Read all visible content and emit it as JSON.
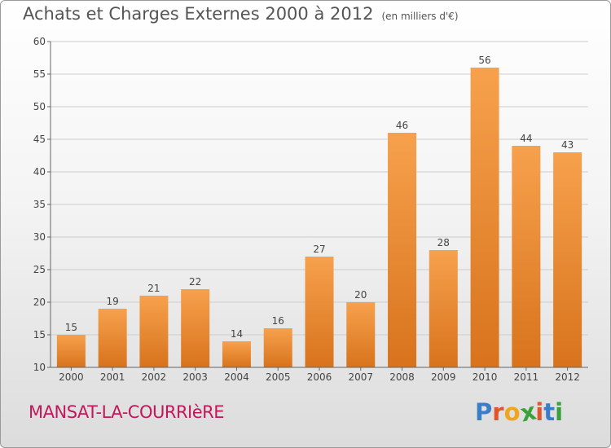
{
  "header": {
    "title": "Achats et Charges Externes 2000 à 2012",
    "subtitle": "(en milliers d'€)"
  },
  "footer": {
    "commune": "MANSAT-LA-COURRIèRE",
    "logo_letters": [
      "P",
      "r",
      "o",
      "x",
      "i",
      "t",
      "i"
    ],
    "logo_colors": [
      "#3a7dc9",
      "#e2552b",
      "#f0a51e",
      "#3aa03a",
      "#e2552b",
      "#3a7dc9",
      "#3aa03a"
    ]
  },
  "colors": {
    "bar_light": "#f7a14d",
    "bar_dark": "#d8731c",
    "grid": "#cccccc",
    "axis": "#666666"
  },
  "chart_data": {
    "type": "bar",
    "title": "Achats et Charges Externes 2000 à 2012",
    "subtitle": "(en milliers d'€)",
    "categories": [
      "2000",
      "2001",
      "2002",
      "2003",
      "2004",
      "2005",
      "2006",
      "2007",
      "2008",
      "2009",
      "2010",
      "2011",
      "2012"
    ],
    "values": [
      15,
      19,
      21,
      22,
      14,
      16,
      27,
      20,
      46,
      28,
      56,
      44,
      43
    ],
    "ylim": [
      10,
      60
    ],
    "yticks": [
      10,
      15,
      20,
      25,
      30,
      35,
      40,
      45,
      50,
      55,
      60
    ],
    "grid": true,
    "legend": "none"
  }
}
